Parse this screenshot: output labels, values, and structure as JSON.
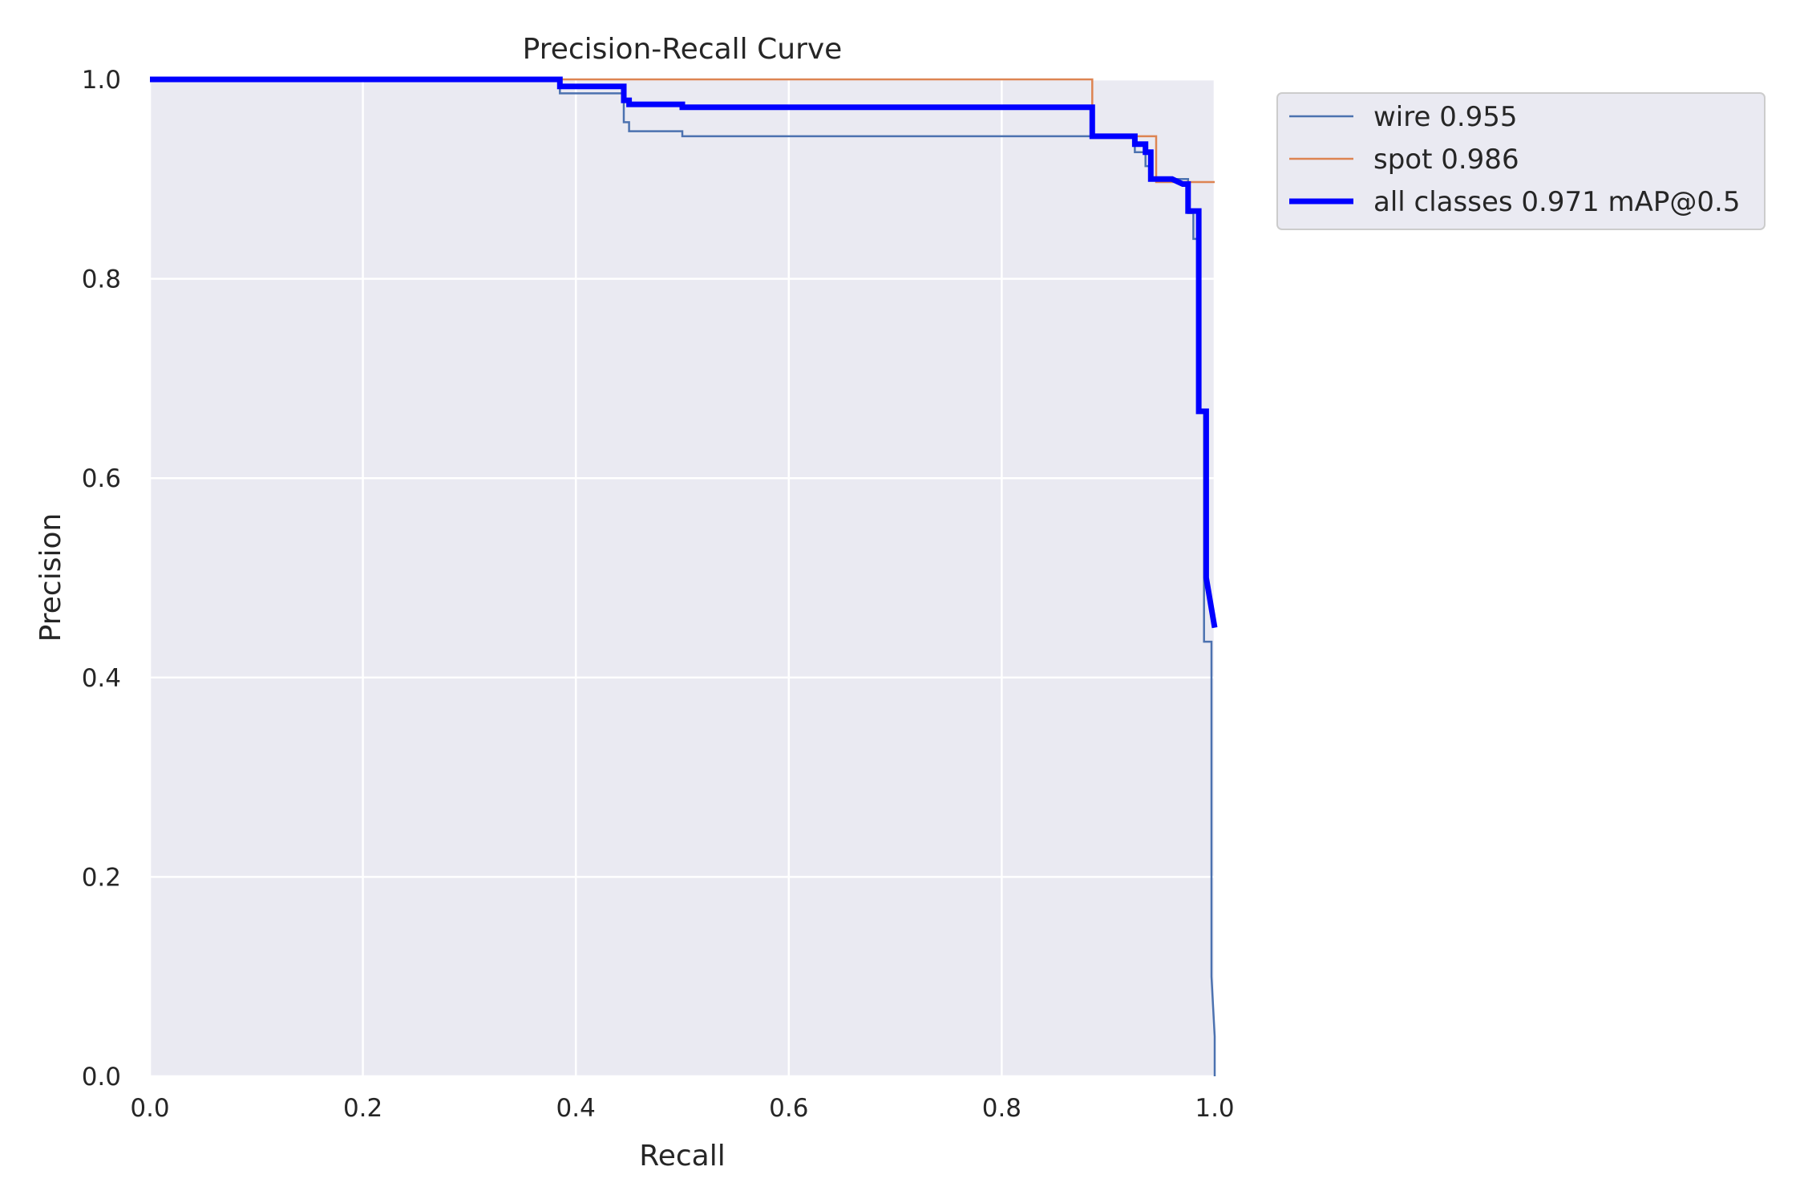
{
  "chart_data": {
    "type": "line",
    "title": "Precision-Recall Curve",
    "xlabel": "Recall",
    "ylabel": "Precision",
    "xlim": [
      0,
      1
    ],
    "ylim": [
      0,
      1
    ],
    "x_ticks": [
      "0.0",
      "0.2",
      "0.4",
      "0.6",
      "0.8",
      "1.0"
    ],
    "y_ticks": [
      "0.0",
      "0.2",
      "0.4",
      "0.6",
      "0.8",
      "1.0"
    ],
    "grid": true,
    "legend_position": "outside-top-right",
    "colors": {
      "plot_bg": "#eaeaf2",
      "grid": "#ffffff",
      "wire": "#4c72b0",
      "spot": "#dd8452",
      "all": "#0000ff"
    },
    "series": [
      {
        "name": "wire 0.955",
        "color": "#4c72b0",
        "points": [
          [
            0.0,
            1.0
          ],
          [
            0.385,
            1.0
          ],
          [
            0.385,
            0.986
          ],
          [
            0.445,
            0.986
          ],
          [
            0.445,
            0.957
          ],
          [
            0.45,
            0.957
          ],
          [
            0.45,
            0.948
          ],
          [
            0.5,
            0.948
          ],
          [
            0.5,
            0.943
          ],
          [
            0.925,
            0.943
          ],
          [
            0.925,
            0.927
          ],
          [
            0.935,
            0.927
          ],
          [
            0.935,
            0.913
          ],
          [
            0.94,
            0.913
          ],
          [
            0.94,
            0.9
          ],
          [
            0.975,
            0.9
          ],
          [
            0.975,
            0.866
          ],
          [
            0.98,
            0.866
          ],
          [
            0.98,
            0.84
          ],
          [
            0.985,
            0.84
          ],
          [
            0.985,
            0.667
          ],
          [
            0.99,
            0.667
          ],
          [
            0.99,
            0.436
          ],
          [
            0.997,
            0.436
          ],
          [
            0.997,
            0.1
          ],
          [
            1.0,
            0.04
          ],
          [
            1.0,
            0.0
          ]
        ]
      },
      {
        "name": "spot 0.986",
        "color": "#dd8452",
        "points": [
          [
            0.0,
            1.0
          ],
          [
            0.885,
            1.0
          ],
          [
            0.885,
            0.943
          ],
          [
            0.945,
            0.943
          ],
          [
            0.945,
            0.897
          ],
          [
            1.0,
            0.897
          ]
        ]
      },
      {
        "name": "all classes 0.971 mAP@0.5",
        "color": "#0000ff",
        "points": [
          [
            0.0,
            1.0
          ],
          [
            0.385,
            1.0
          ],
          [
            0.385,
            0.993
          ],
          [
            0.445,
            0.993
          ],
          [
            0.445,
            0.979
          ],
          [
            0.45,
            0.979
          ],
          [
            0.45,
            0.975
          ],
          [
            0.5,
            0.975
          ],
          [
            0.5,
            0.972
          ],
          [
            0.885,
            0.972
          ],
          [
            0.885,
            0.943
          ],
          [
            0.925,
            0.943
          ],
          [
            0.925,
            0.935
          ],
          [
            0.935,
            0.935
          ],
          [
            0.935,
            0.927
          ],
          [
            0.94,
            0.927
          ],
          [
            0.94,
            0.9
          ],
          [
            0.96,
            0.9
          ],
          [
            0.97,
            0.895
          ],
          [
            0.975,
            0.895
          ],
          [
            0.975,
            0.868
          ],
          [
            0.985,
            0.868
          ],
          [
            0.985,
            0.667
          ],
          [
            0.992,
            0.667
          ],
          [
            0.992,
            0.5
          ],
          [
            1.0,
            0.45
          ]
        ]
      }
    ]
  }
}
